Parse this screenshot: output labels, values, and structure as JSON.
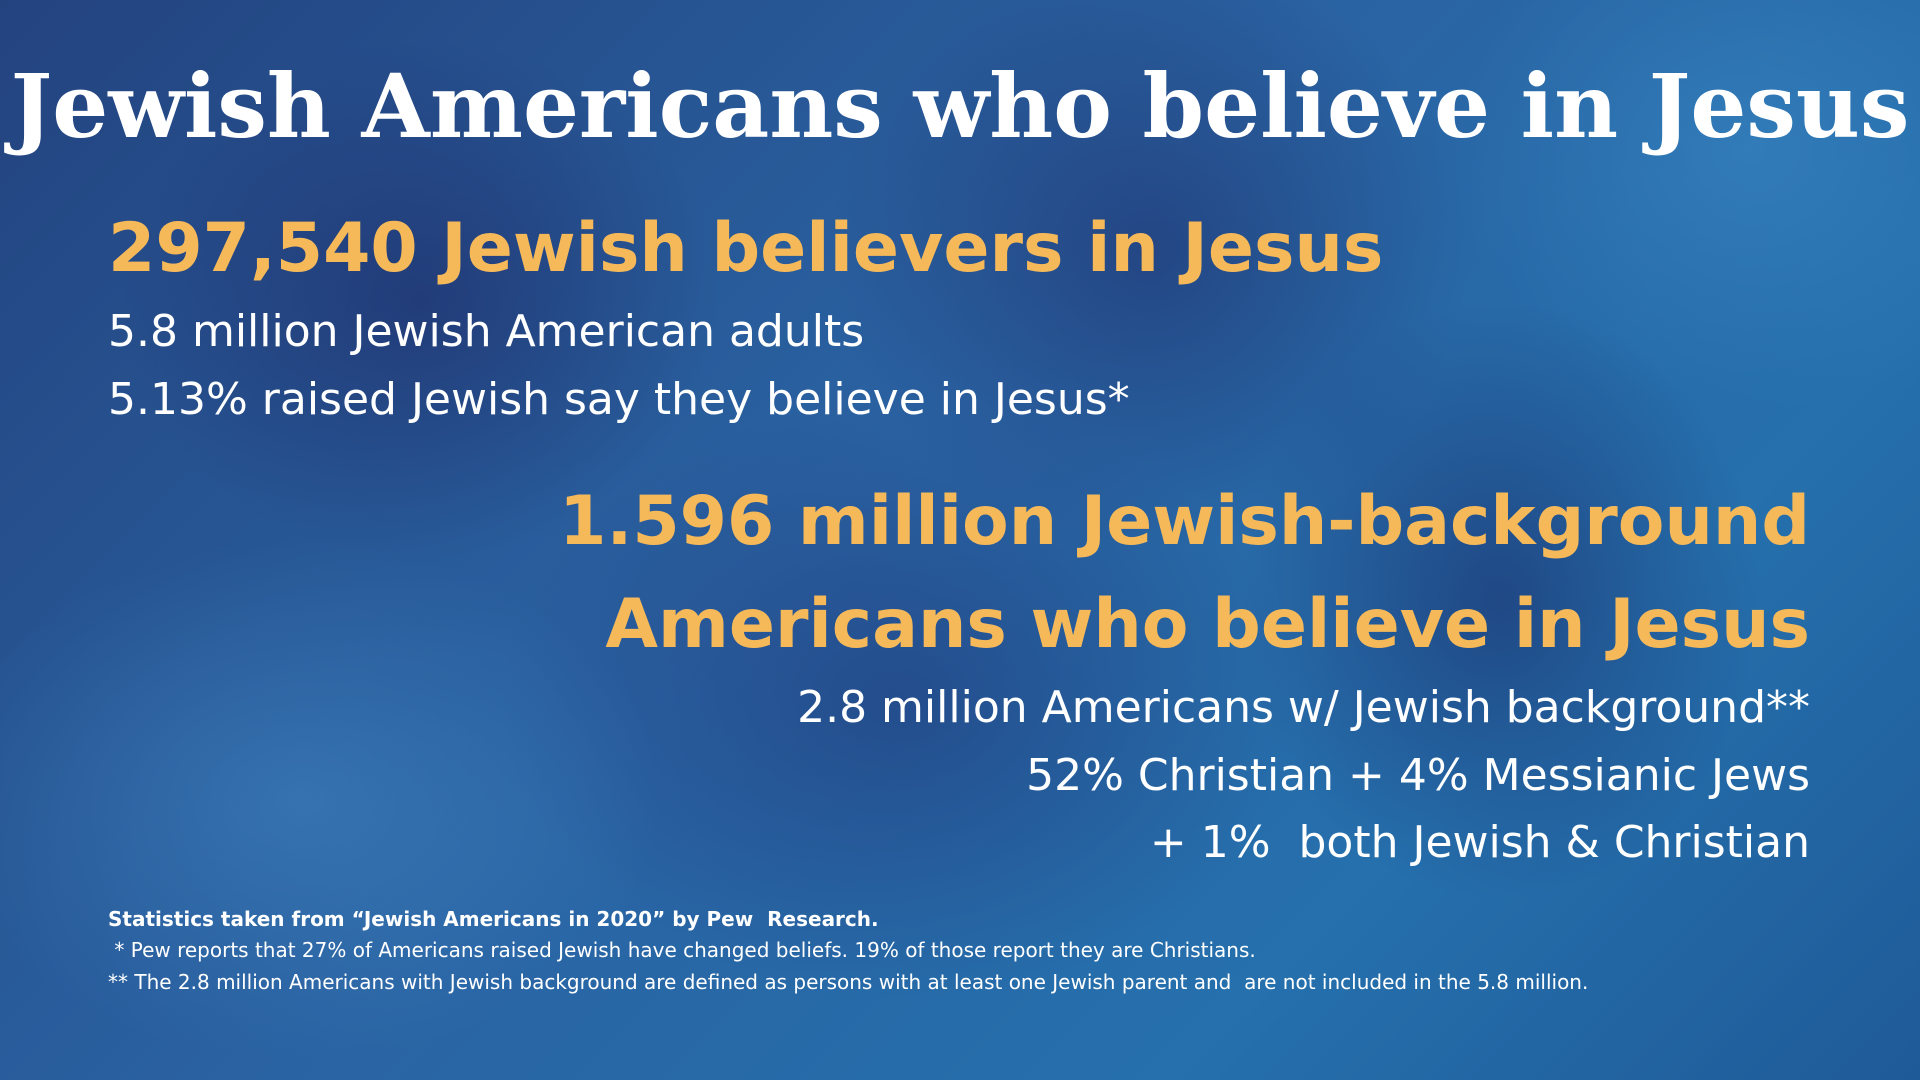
{
  "title": "Jewish Americans who believe in Jesus",
  "section1": {
    "heading": "297,540 Jewish believers in Jesus",
    "lines": [
      "5.8 million Jewish American adults",
      "5.13% raised Jewish say they believe in Jesus*"
    ]
  },
  "section2": {
    "heading": [
      "1.596 million Jewish-background",
      "Americans who believe in Jesus"
    ],
    "lines": [
      "2.8 million Americans w/ Jewish background**",
      "52% Christian + 4% Messianic Jews",
      "+ 1%  both Jewish & Christian"
    ]
  },
  "footnotes": {
    "source": "Statistics taken from “Jewish Americans in 2020” by Pew  Research.",
    "notes": [
      " * Pew reports that 27% of Americans raised Jewish have changed beliefs. 19% of those report they are Christians.",
      "** The 2.8 million Americans with Jewish background are defined as persons with at least one Jewish parent and  are not included in the 5.8 million."
    ]
  }
}
